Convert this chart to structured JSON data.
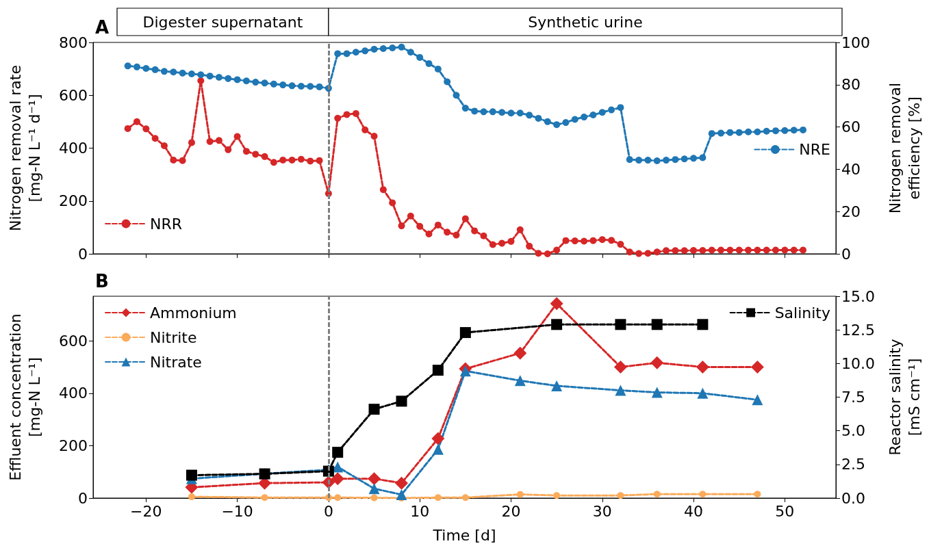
{
  "chart_data": [
    {
      "type": "line",
      "title": "A",
      "ylabel": "Nitrogen removal rate\n[mg-N L⁻¹ d⁻¹]",
      "y2label": "Nitrogen removal\nefficiency [%]",
      "x": [
        -22,
        -21,
        -20,
        -19,
        -18,
        -17,
        -16,
        -15,
        -14,
        -13,
        -12,
        -11,
        -10,
        -9,
        -8,
        -7,
        -6,
        -5,
        -4,
        -3,
        -2,
        -1,
        0,
        1,
        2,
        3,
        4,
        5,
        6,
        7,
        8,
        9,
        10,
        11,
        12,
        13,
        14,
        15,
        16,
        17,
        18,
        19,
        20,
        21,
        22,
        23,
        24,
        25,
        26,
        27,
        28,
        29,
        30,
        31,
        32,
        33,
        34,
        35,
        36,
        37,
        38,
        39,
        40,
        41,
        42,
        43,
        44,
        45,
        46,
        47,
        48,
        49,
        50,
        51,
        52
      ],
      "series": [
        {
          "name": "NRR",
          "color": "#d62728",
          "marker": "circle",
          "values": [
            474,
            500,
            473,
            437,
            409,
            355,
            353,
            421,
            655,
            425,
            429,
            394,
            444,
            388,
            377,
            368,
            346,
            355,
            355,
            358,
            351,
            353,
            228,
            513,
            527,
            531,
            469,
            445,
            243,
            193,
            106,
            143,
            104,
            75,
            109,
            82,
            71,
            133,
            87,
            68,
            35,
            40,
            47,
            91,
            29,
            2,
            0,
            14,
            50,
            49,
            48,
            50,
            54,
            51,
            36,
            7,
            1,
            2,
            7,
            12,
            12,
            12,
            13,
            13,
            14,
            14,
            14,
            14,
            14,
            14,
            14,
            14,
            14,
            14,
            14
          ]
        },
        {
          "name": "NRE",
          "color": "#1f77b4",
          "marker": "circle",
          "axis": "y2",
          "values": [
            88.9,
            88.4,
            87.7,
            87.1,
            86.3,
            86.0,
            85.5,
            85.1,
            84.7,
            84.1,
            83.5,
            82.9,
            82.4,
            81.8,
            81.2,
            80.8,
            80.3,
            79.9,
            79.5,
            79.3,
            79.2,
            79.0,
            78.3,
            94.7,
            94.7,
            95.4,
            96.0,
            96.8,
            97.1,
            97.4,
            97.8,
            95.4,
            92.9,
            90.0,
            87.4,
            81.4,
            75.0,
            68.9,
            67.5,
            67.2,
            67.2,
            66.9,
            66.6,
            66.6,
            65.6,
            64.1,
            62.5,
            61.1,
            62.1,
            63.6,
            64.7,
            65.7,
            66.9,
            68.1,
            69.2,
            44.6,
            44.3,
            44.3,
            44.0,
            44.3,
            44.6,
            44.9,
            45.2,
            45.5,
            56.9,
            57.1,
            57.4,
            57.4,
            57.7,
            57.7,
            58.0,
            58.2,
            58.3,
            58.5,
            58.6
          ]
        }
      ],
      "xlim": [
        -25.8,
        55.6
      ],
      "xticks": [
        {
          "value": -20,
          "label": null
        },
        {
          "value": -10,
          "label": null
        },
        {
          "value": 0,
          "label": null
        },
        {
          "value": 10,
          "label": null
        },
        {
          "value": 20,
          "label": null
        },
        {
          "value": 30,
          "label": null
        },
        {
          "value": 40,
          "label": null
        },
        {
          "value": 50,
          "label": null
        }
      ],
      "ylim": [
        0,
        800
      ],
      "yticks": [
        0,
        200,
        400,
        600,
        800
      ],
      "y2lim": [
        0,
        100
      ],
      "y2ticks": [
        0,
        20,
        40,
        60,
        80,
        100
      ],
      "tick_labels": "y",
      "grid": false,
      "legend": [
        "bottom left",
        "right"
      ],
      "line_style": "dashed",
      "ref_lines": [
        {
          "axis": "x",
          "value": 0,
          "color": "#808080",
          "line_style": "dashed"
        }
      ],
      "annotations": [
        "Digester supernatant",
        "Synthetic urine"
      ]
    },
    {
      "type": "line",
      "title": "B",
      "xlabel": "Time [d]",
      "ylabel": "Effluent concentration\n[mg-N L⁻¹]",
      "y2label": "Reactor salinity\n[mS cm⁻¹]",
      "x": [
        -15,
        -7,
        0,
        1,
        5,
        8,
        12,
        15,
        21,
        25,
        32,
        36,
        41,
        47
      ],
      "series": [
        {
          "name": "Ammonium",
          "color": "#d62728",
          "marker": "diamond",
          "values": [
            41,
            57,
            60,
            74,
            74,
            57,
            227,
            493,
            553,
            742,
            500,
            516,
            500,
            500
          ]
        },
        {
          "name": "Nitrite",
          "color": "#fbab5a",
          "marker": "circle",
          "values": [
            5,
            2,
            2,
            2,
            1,
            0,
            2,
            2,
            14,
            10,
            10,
            15,
            15,
            15
          ]
        },
        {
          "name": "Nitrate",
          "color": "#1f77b4",
          "marker": "triangle",
          "values": [
            74,
            93,
            108,
            119,
            36,
            13,
            186,
            485,
            448,
            428,
            411,
            403,
            400,
            375
          ]
        },
        {
          "name": "Salinity",
          "color": "#000000",
          "marker": "square",
          "axis": "y2",
          "x": [
            -15,
            -7,
            0,
            1,
            5,
            8,
            12,
            15,
            25,
            32,
            36,
            41
          ],
          "values": [
            1.7,
            1.8,
            2.0,
            3.4,
            6.6,
            7.2,
            9.5,
            12.3,
            12.9,
            12.9,
            12.9,
            12.9
          ]
        }
      ],
      "xlim": [
        -25.8,
        55.6
      ],
      "xticks": [
        {
          "value": -20,
          "label": "−20"
        },
        {
          "value": -10,
          "label": "−10"
        },
        0,
        10,
        20,
        30,
        40,
        50
      ],
      "ylim": [
        0,
        770
      ],
      "yticks": [
        0,
        200,
        400,
        600
      ],
      "y2lim": [
        0,
        15
      ],
      "y2ticks": [
        {
          "value": 0,
          "label": "0.0"
        },
        {
          "value": 2.5,
          "label": "2.5"
        },
        {
          "value": 5,
          "label": "5.0"
        },
        {
          "value": 7.5,
          "label": "7.5"
        },
        {
          "value": 10,
          "label": "10.0"
        },
        {
          "value": 12.5,
          "label": "12.5"
        },
        {
          "value": 15,
          "label": "15.0"
        }
      ],
      "grid": false,
      "legend": [
        "top left",
        "top left",
        "top left",
        "top right"
      ],
      "line_style": "dashed",
      "ref_lines": [
        {
          "axis": "x",
          "value": 0,
          "color": "#808080",
          "line_style": "dashed"
        }
      ]
    }
  ]
}
